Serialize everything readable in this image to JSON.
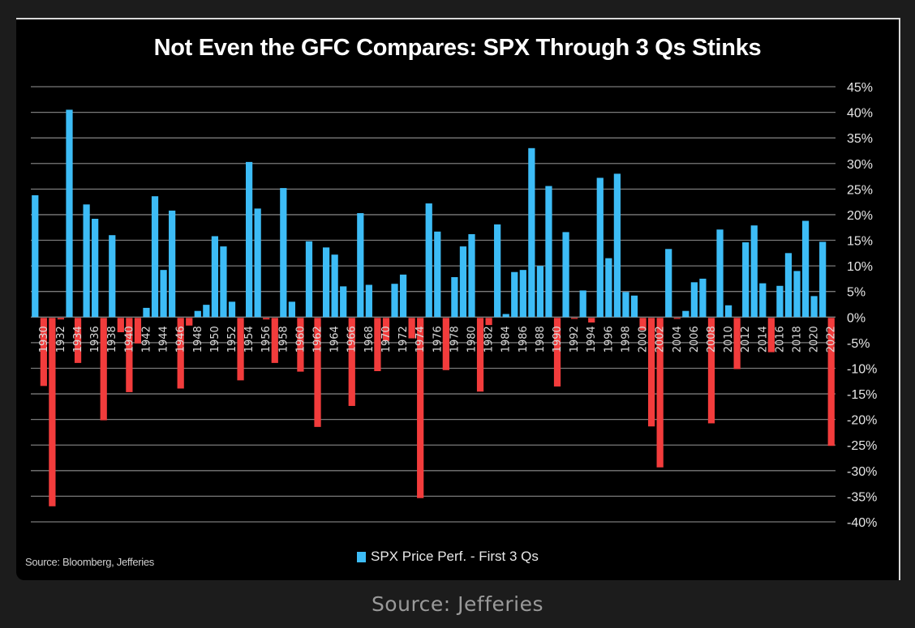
{
  "caption": "Source: Jefferies",
  "chart_data": {
    "type": "bar",
    "title": "Not Even the GFC Compares: SPX Through 3 Qs Stinks",
    "xlabel": "",
    "ylabel": "",
    "ylim": [
      -40,
      45
    ],
    "yticks": [
      45,
      40,
      35,
      30,
      25,
      20,
      15,
      10,
      5,
      0,
      -5,
      -10,
      -15,
      -20,
      -25,
      -30,
      -35,
      -40
    ],
    "ytick_labels": [
      "45%",
      "40%",
      "35%",
      "30%",
      "25%",
      "20%",
      "15%",
      "10%",
      "5%",
      "0%",
      "-5%",
      "-10%",
      "-15%",
      "-20%",
      "-25%",
      "-30%",
      "-35%",
      "-40%"
    ],
    "ytick_position": "right",
    "grid": true,
    "legend": {
      "position": "bottom-center",
      "entries": [
        {
          "label": "SPX Price Perf. - First 3 Qs",
          "color": "#3dbcf6"
        }
      ]
    },
    "source_note": "Source: Bloomberg, Jefferies",
    "positive_color": "#3dbcf6",
    "negative_color": "#f23c3c",
    "xtick_labels_every": 2,
    "categories": [
      "1929",
      "1930",
      "1931",
      "1932",
      "1933",
      "1934",
      "1935",
      "1936",
      "1937",
      "1938",
      "1939",
      "1940",
      "1941",
      "1942",
      "1943",
      "1944",
      "1945",
      "1946",
      "1947",
      "1948",
      "1949",
      "1950",
      "1951",
      "1952",
      "1953",
      "1954",
      "1955",
      "1956",
      "1957",
      "1958",
      "1959",
      "1960",
      "1961",
      "1962",
      "1963",
      "1964",
      "1965",
      "1966",
      "1967",
      "1968",
      "1969",
      "1970",
      "1971",
      "1972",
      "1973",
      "1974",
      "1975",
      "1976",
      "1977",
      "1978",
      "1979",
      "1980",
      "1981",
      "1982",
      "1983",
      "1984",
      "1985",
      "1986",
      "1987",
      "1988",
      "1989",
      "1990",
      "1991",
      "1992",
      "1993",
      "1994",
      "1995",
      "1996",
      "1997",
      "1998",
      "1999",
      "2000",
      "2001",
      "2002",
      "2003",
      "2004",
      "2005",
      "2006",
      "2007",
      "2008",
      "2009",
      "2010",
      "2011",
      "2012",
      "2013",
      "2014",
      "2015",
      "2016",
      "2017",
      "2018",
      "2019",
      "2020",
      "2021",
      "2022"
    ],
    "series": [
      {
        "name": "SPX Price Perf. - First 3 Qs",
        "values": [
          23.8,
          -13.3,
          -36.8,
          -0.3,
          40.5,
          -8.8,
          22.0,
          19.2,
          -20.0,
          16.0,
          -2.8,
          -14.5,
          -5.0,
          1.8,
          23.6,
          9.2,
          20.8,
          -13.8,
          -1.5,
          1.2,
          2.4,
          15.8,
          13.8,
          3.0,
          -12.2,
          30.3,
          21.2,
          -0.3,
          -8.8,
          25.2,
          3.0,
          -10.5,
          14.8,
          -21.3,
          13.6,
          12.2,
          6.0,
          -17.2,
          20.3,
          6.3,
          -10.4,
          -4.5,
          6.5,
          8.3,
          -4.0,
          -35.2,
          22.2,
          16.7,
          -10.2,
          7.8,
          13.8,
          16.2,
          -14.4,
          -1.4,
          18.1,
          0.6,
          8.8,
          9.2,
          33.0,
          10.0,
          25.6,
          -13.4,
          16.6,
          -0.2,
          5.2,
          -0.9,
          27.2,
          11.5,
          28.0,
          4.9,
          4.2,
          -2.4,
          -21.2,
          -29.2,
          13.3,
          -0.2,
          1.2,
          6.8,
          7.5,
          -20.6,
          17.1,
          2.3,
          -10.0,
          14.6,
          17.9,
          6.6,
          -6.7,
          6.1,
          12.5,
          9.0,
          18.8,
          4.1,
          14.7,
          -25.0
        ]
      }
    ]
  }
}
